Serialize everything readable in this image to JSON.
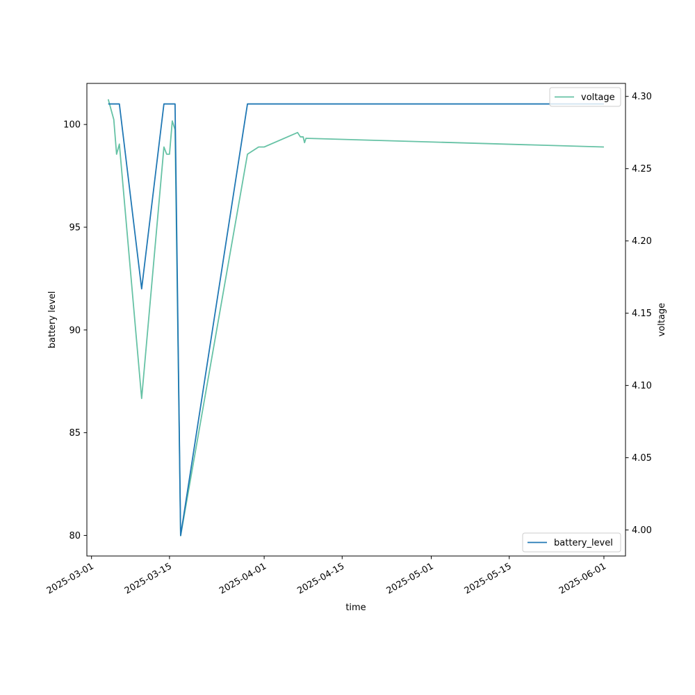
{
  "chart_data": {
    "type": "line",
    "xlabel": "time",
    "ylabel_left": "battery level",
    "ylabel_right": "voltage",
    "x_range": [
      "2025-02-28",
      "2025-06-05"
    ],
    "x_ticks": [
      "2025-03-01",
      "2025-03-15",
      "2025-04-01",
      "2025-04-15",
      "2025-05-01",
      "2025-05-15",
      "2025-06-01"
    ],
    "y_left_range": [
      79,
      102
    ],
    "y_left_ticks": [
      80,
      85,
      90,
      95,
      100
    ],
    "y_right_range": [
      3.982,
      4.309
    ],
    "y_right_ticks": [
      4.0,
      4.05,
      4.1,
      4.15,
      4.2,
      4.25,
      4.3
    ],
    "y_right_tick_labels": [
      "4.00",
      "4.05",
      "4.10",
      "4.15",
      "4.20",
      "4.25",
      "4.30"
    ],
    "grid": false,
    "series": [
      {
        "name": "battery_level",
        "axis": "left",
        "color": "#1f77b4",
        "legend_position": "lower-right",
        "points": [
          [
            "2025-03-04",
            101
          ],
          [
            "2025-03-06",
            101
          ],
          [
            "2025-03-10",
            92
          ],
          [
            "2025-03-14",
            101
          ],
          [
            "2025-03-16",
            101
          ],
          [
            "2025-03-17",
            80
          ],
          [
            "2025-03-29",
            101
          ],
          [
            "2025-06-01",
            101
          ]
        ]
      },
      {
        "name": "voltage",
        "axis": "right",
        "color": "#66c2a5",
        "legend_position": "upper-right",
        "points": [
          [
            "2025-03-04",
            4.298
          ],
          [
            "2025-03-05",
            4.284
          ],
          [
            "2025-03-05T12:00",
            4.26
          ],
          [
            "2025-03-06",
            4.267
          ],
          [
            "2025-03-10",
            4.091
          ],
          [
            "2025-03-14",
            4.265
          ],
          [
            "2025-03-14T12:00",
            4.26
          ],
          [
            "2025-03-15",
            4.26
          ],
          [
            "2025-03-15T12:00",
            4.283
          ],
          [
            "2025-03-16",
            4.277
          ],
          [
            "2025-03-17",
            3.996
          ],
          [
            "2025-03-29",
            4.26
          ],
          [
            "2025-03-31",
            4.265
          ],
          [
            "2025-04-01",
            4.265
          ],
          [
            "2025-04-07",
            4.275
          ],
          [
            "2025-04-07T12:00",
            4.272
          ],
          [
            "2025-04-08",
            4.272
          ],
          [
            "2025-04-08T06:00",
            4.268
          ],
          [
            "2025-04-08T12:00",
            4.271
          ],
          [
            "2025-06-01",
            4.265
          ]
        ]
      }
    ]
  }
}
